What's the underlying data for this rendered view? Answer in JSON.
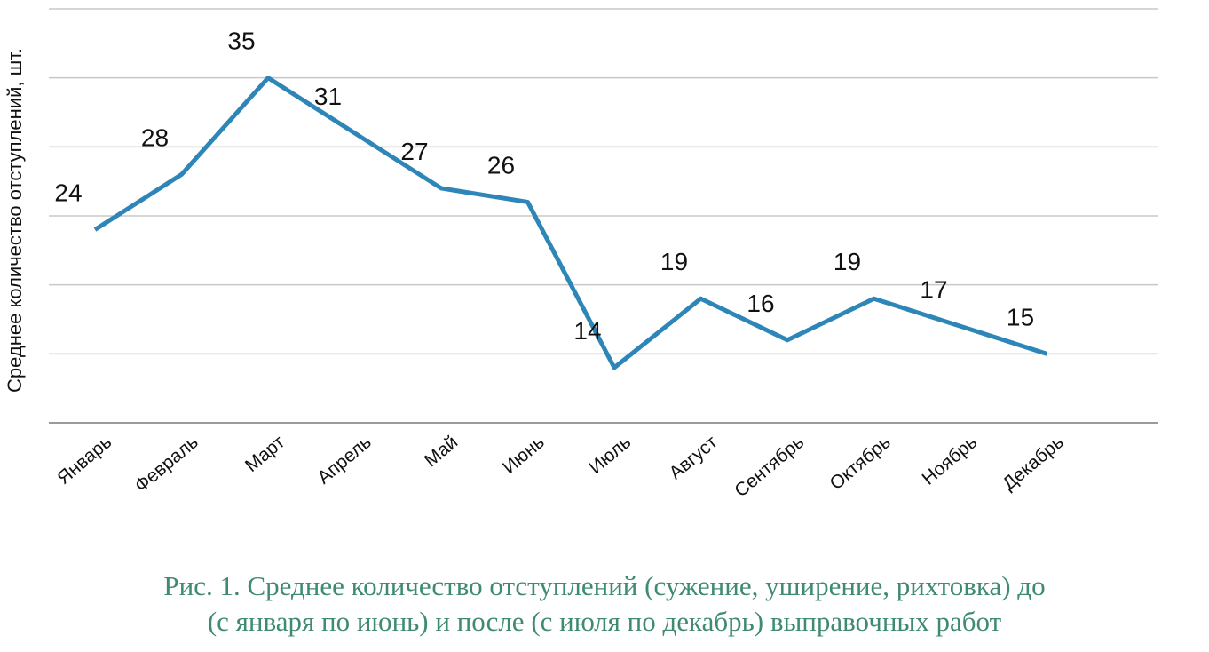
{
  "chart_data": {
    "type": "line",
    "ylabel": "Среднее количество отступлений, шт.",
    "categories": [
      "Январь",
      "Февраль",
      "Март",
      "Апрель",
      "Май",
      "Июнь",
      "Июль",
      "Август",
      "Сентябрь",
      "Октябрь",
      "Ноябрь",
      "Декабрь"
    ],
    "series": [
      {
        "values": [
          24,
          28,
          35,
          31,
          27,
          26,
          14,
          19,
          16,
          19,
          17,
          15
        ]
      }
    ],
    "data_labels": [
      "24",
      "28",
      "35",
      "31",
      "27",
      "26",
      "14",
      "19",
      "16",
      "19",
      "17",
      "15"
    ],
    "ylim": [
      10,
      40
    ],
    "grid": true,
    "line_color": "#2e86b8"
  },
  "caption": {
    "line1": "Рис. 1. Среднее количество отступлений (сужение, уширение, рихтовка) до",
    "line2": "(с января по июнь) и после (с июля по декабрь) выправочных работ"
  }
}
